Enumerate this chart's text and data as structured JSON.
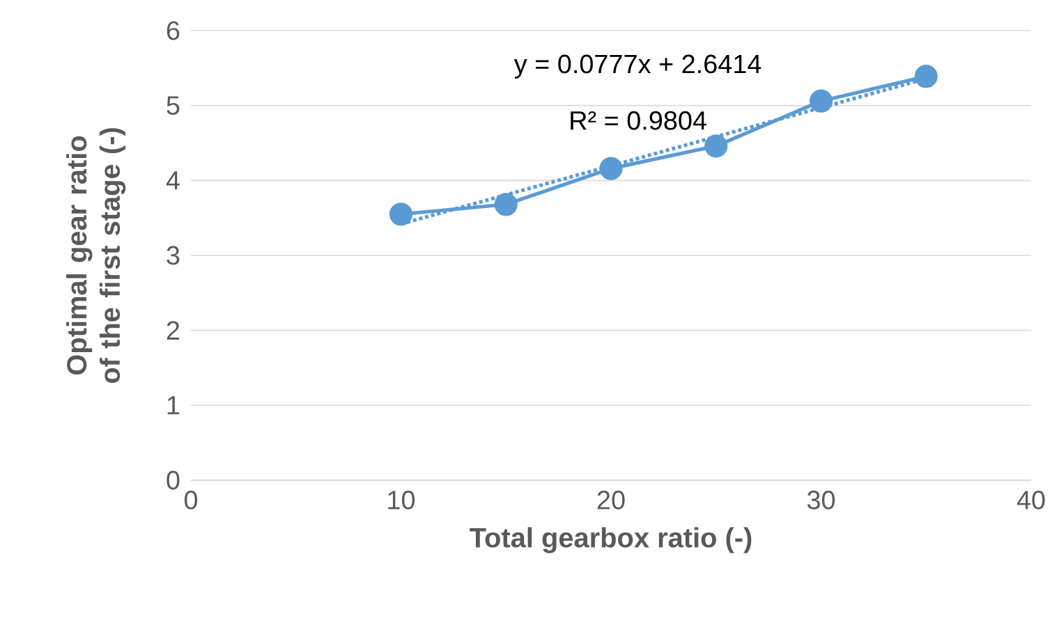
{
  "chart_data": {
    "type": "line",
    "xlabel": "Total gearbox ratio (-)",
    "ylabel": "Optimal gear ratio of the first stage (-)",
    "annotations": [
      "y = 0.0777x + 2.6414",
      "R² = 0.9804"
    ],
    "series": [
      {
        "color": "#5b9bd5",
        "x": [
          10,
          15,
          20,
          25,
          30,
          35
        ],
        "values": [
          3.55,
          3.68,
          4.16,
          4.46,
          5.06,
          5.39
        ],
        "marker": "circle",
        "line_style": "solid"
      },
      {
        "type": "line",
        "color": "#5b9bd5",
        "x": [
          10,
          35
        ],
        "values": [
          3.42,
          5.36
        ],
        "marker": "none",
        "line_style": "dotted"
      }
    ],
    "xlim": [
      0,
      40
    ],
    "xticks": [
      0,
      10,
      20,
      30,
      40
    ],
    "ylim": [
      0,
      6
    ],
    "yticks": [
      0,
      1,
      2,
      3,
      4,
      5,
      6
    ],
    "grid": "y"
  }
}
